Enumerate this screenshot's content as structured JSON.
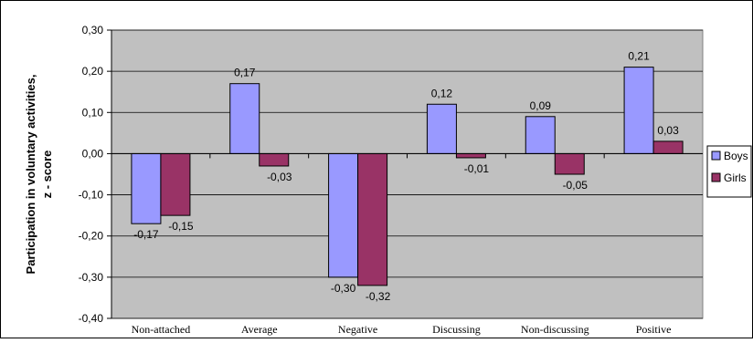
{
  "chart_data": {
    "type": "bar",
    "title": "",
    "xlabel": "",
    "ylabel": "Participation in voluntary activities,\nz - score",
    "ylabel_lines": [
      "Participation in voluntary activities,",
      "z - score"
    ],
    "ylim": [
      -0.4,
      0.3
    ],
    "yticks": [
      "0,30",
      "0,20",
      "0,10",
      "0,00",
      "-0,10",
      "-0,20",
      "-0,30",
      "-0,40"
    ],
    "ytick_values": [
      0.3,
      0.2,
      0.1,
      0.0,
      -0.1,
      -0.2,
      -0.3,
      -0.4
    ],
    "grid": true,
    "legend_position": "right",
    "categories": [
      "Non-attached",
      "Average",
      "Negative",
      "Discussing",
      "Non-discussing",
      "Positive"
    ],
    "series": [
      {
        "name": "Boys",
        "color": "#9999ff",
        "values": [
          -0.17,
          0.17,
          -0.3,
          0.12,
          0.09,
          0.21
        ],
        "labels": [
          "-0,17",
          "0,17",
          "-0,30",
          "0,12",
          "0,09",
          "0,21"
        ]
      },
      {
        "name": "Girls",
        "color": "#993366",
        "values": [
          -0.15,
          -0.03,
          -0.32,
          -0.01,
          -0.05,
          0.03
        ],
        "labels": [
          "-0,15",
          "-0,03",
          "-0,32",
          "-0,01",
          "-0,05",
          "0,03"
        ]
      }
    ],
    "plot_background": "#c0c0c0"
  }
}
